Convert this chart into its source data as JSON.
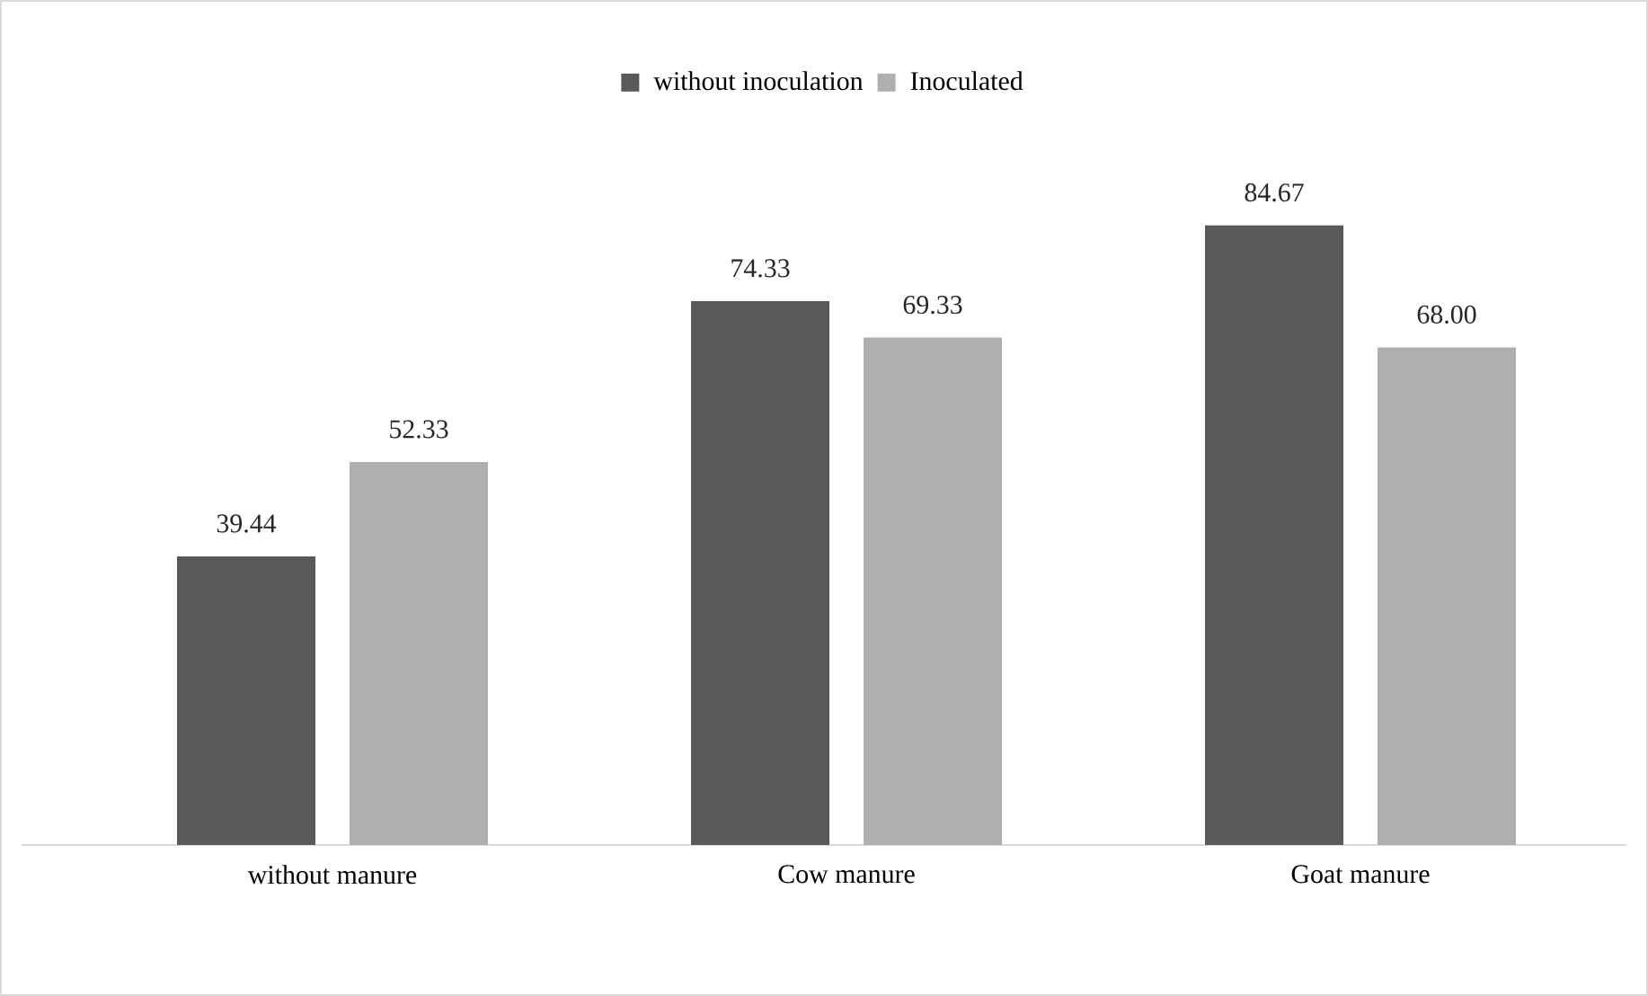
{
  "chart_data": {
    "type": "bar",
    "categories": [
      "without manure",
      "Cow manure",
      "Goat manure"
    ],
    "series": [
      {
        "name": "without inoculation",
        "color": "#595959",
        "values": [
          39.44,
          74.33,
          84.67
        ],
        "value_labels": [
          "39.44",
          "74.33",
          "84.67"
        ]
      },
      {
        "name": "Inoculated",
        "color": "#afafaf",
        "values": [
          52.33,
          69.33,
          68.0
        ],
        "value_labels": [
          "52.33",
          "69.33",
          "68.00"
        ]
      }
    ],
    "legend": "top"
  }
}
